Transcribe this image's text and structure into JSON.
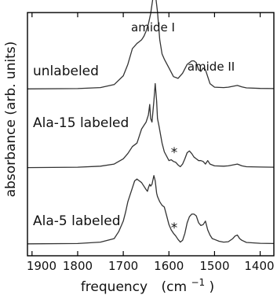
{
  "chart_data": {
    "type": "line",
    "xlabel": "frequency",
    "xunit": "(cm",
    "xunit_sup": "−1",
    "xunit_close": ")",
    "ylabel": "absorbance (arb. units)",
    "x_reversed": true,
    "xlim": [
      1910,
      1370
    ],
    "xticks": [
      1900,
      1800,
      1700,
      1600,
      1500,
      1400
    ],
    "ylim": [
      0,
      1
    ],
    "yticks_shown": false,
    "grid": false,
    "annotations": [
      "amide I",
      "amide II"
    ],
    "impurity_marker": "*",
    "series": [
      {
        "name": "unlabeled",
        "offset": 0.7,
        "marker": false,
        "x": [
          1910,
          1800,
          1750,
          1720,
          1700,
          1690,
          1680,
          1670,
          1665,
          1660,
          1655,
          1650,
          1645,
          1640,
          1635,
          1630,
          1625,
          1620,
          1615,
          1610,
          1600,
          1590,
          1580,
          1570,
          1560,
          1550,
          1545,
          1540,
          1535,
          1530,
          1525,
          1520,
          1515,
          1510,
          1500,
          1480,
          1470,
          1460,
          1450,
          1440,
          1430,
          1400,
          1370
        ],
        "y": [
          0,
          0.002,
          0.008,
          0.025,
          0.075,
          0.14,
          0.23,
          0.26,
          0.27,
          0.28,
          0.3,
          0.33,
          0.37,
          0.43,
          0.52,
          0.55,
          0.44,
          0.28,
          0.2,
          0.17,
          0.12,
          0.07,
          0.06,
          0.09,
          0.14,
          0.16,
          0.16,
          0.15,
          0.11,
          0.1,
          0.12,
          0.11,
          0.07,
          0.03,
          0.01,
          0.008,
          0.01,
          0.015,
          0.02,
          0.012,
          0.006,
          0.003,
          0.002
        ]
      },
      {
        "name": "Ala-15 labeled",
        "offset": 0.37,
        "marker": true,
        "x": [
          1910,
          1800,
          1750,
          1720,
          1700,
          1690,
          1680,
          1670,
          1665,
          1660,
          1655,
          1650,
          1645,
          1642,
          1640,
          1637,
          1633,
          1630,
          1627,
          1625,
          1622,
          1615,
          1610,
          1600,
          1595,
          1590,
          1585,
          1580,
          1575,
          1570,
          1565,
          1560,
          1555,
          1550,
          1545,
          1540,
          1535,
          1530,
          1525,
          1520,
          1515,
          1510,
          1500,
          1480,
          1470,
          1460,
          1450,
          1440,
          1430,
          1400,
          1370
        ],
        "y": [
          0,
          0.002,
          0.008,
          0.02,
          0.05,
          0.08,
          0.12,
          0.14,
          0.18,
          0.22,
          0.24,
          0.26,
          0.3,
          0.36,
          0.28,
          0.26,
          0.38,
          0.48,
          0.38,
          0.28,
          0.24,
          0.14,
          0.09,
          0.04,
          0.045,
          0.035,
          0.03,
          0.015,
          0.005,
          0.02,
          0.05,
          0.085,
          0.095,
          0.08,
          0.06,
          0.05,
          0.04,
          0.04,
          0.035,
          0.02,
          0.04,
          0.02,
          0.01,
          0.008,
          0.01,
          0.015,
          0.02,
          0.01,
          0.005,
          0.003,
          0.002
        ]
      },
      {
        "name": "Ala-5 labeled",
        "offset": 0.05,
        "marker": true,
        "x": [
          1910,
          1800,
          1750,
          1720,
          1710,
          1700,
          1695,
          1690,
          1680,
          1675,
          1670,
          1665,
          1660,
          1655,
          1650,
          1647,
          1645,
          1642,
          1640,
          1637,
          1633,
          1630,
          1627,
          1625,
          1620,
          1615,
          1610,
          1605,
          1600,
          1595,
          1590,
          1585,
          1580,
          1575,
          1570,
          1565,
          1560,
          1555,
          1550,
          1545,
          1540,
          1535,
          1530,
          1525,
          1520,
          1515,
          1510,
          1505,
          1500,
          1490,
          1480,
          1470,
          1460,
          1455,
          1450,
          1445,
          1440,
          1430,
          1400,
          1370
        ],
        "y": [
          0,
          0.002,
          0.01,
          0.03,
          0.07,
          0.13,
          0.18,
          0.24,
          0.32,
          0.36,
          0.37,
          0.36,
          0.35,
          0.33,
          0.31,
          0.3,
          0.32,
          0.34,
          0.33,
          0.34,
          0.39,
          0.36,
          0.29,
          0.27,
          0.24,
          0.22,
          0.21,
          0.16,
          0.11,
          0.08,
          0.06,
          0.045,
          0.025,
          0.01,
          0.02,
          0.06,
          0.12,
          0.155,
          0.17,
          0.17,
          0.16,
          0.12,
          0.105,
          0.11,
          0.13,
          0.08,
          0.05,
          0.03,
          0.025,
          0.015,
          0.01,
          0.012,
          0.03,
          0.045,
          0.05,
          0.03,
          0.02,
          0.008,
          0.003,
          0.002
        ]
      }
    ]
  }
}
